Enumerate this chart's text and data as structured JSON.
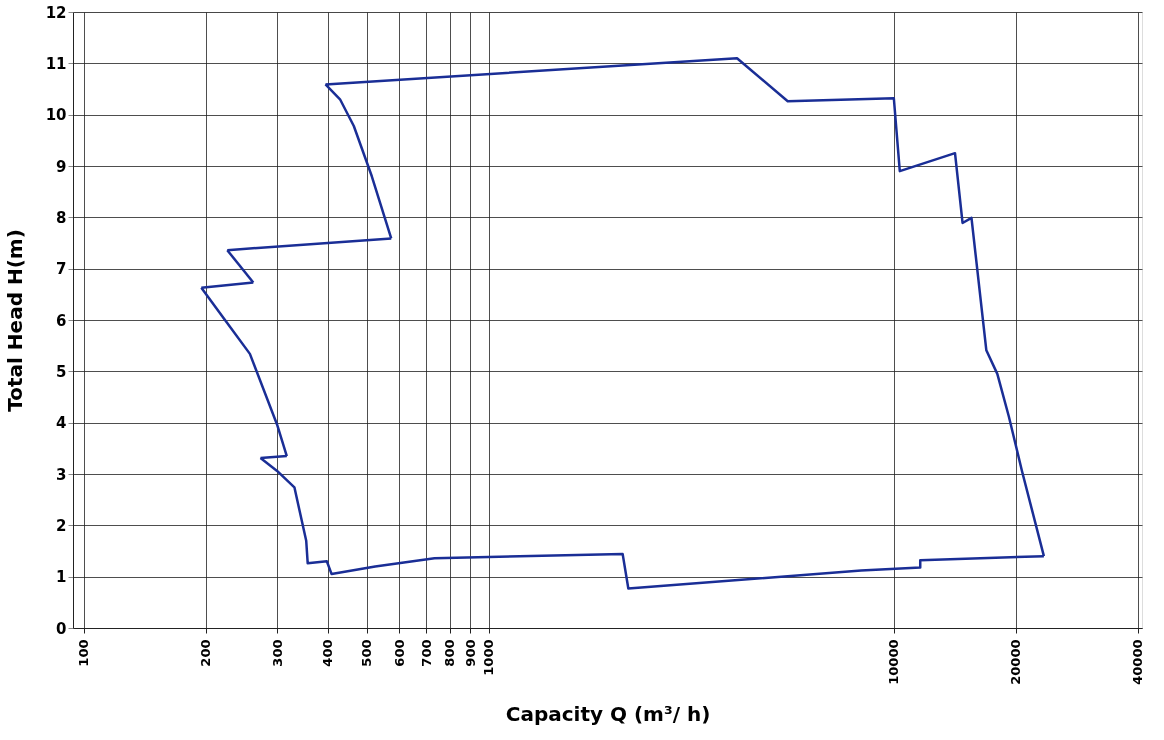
{
  "chart_data": {
    "type": "line",
    "xlabel": "Capacity Q (m³/ h)",
    "ylabel": "Total Head H(m)",
    "log": "x",
    "grid": true,
    "marker": "none",
    "line_style": "solid",
    "xlim": [
      94,
      41000
    ],
    "ylim": [
      0,
      12
    ],
    "xticks": [
      100,
      200,
      300,
      400,
      500,
      600,
      700,
      800,
      900,
      1000,
      10000,
      20000,
      40000
    ],
    "yticks": [
      0,
      1,
      2,
      3,
      4,
      5,
      6,
      7,
      8,
      9,
      10,
      11,
      12
    ],
    "series": [
      {
        "color": "#1a2e96",
        "x": [
          395,
          4100,
          5470,
          10000,
          10345,
          14160,
          14780,
          15550,
          16920,
          18010,
          19230,
          20720,
          23470
        ],
        "values": [
          10.59,
          11.1,
          10.26,
          10.32,
          8.9,
          9.25,
          7.89,
          7.99,
          5.41,
          4.95,
          4.12,
          3.06,
          1.4
        ]
      },
      {
        "color": "#1a2e96",
        "x": [
          23470,
          11620,
          11620,
          8300,
          2210,
          2140,
          734,
          524,
          409,
          398,
          357,
          354,
          331,
          300,
          273
        ],
        "values": [
          1.4,
          1.32,
          1.18,
          1.12,
          0.77,
          1.44,
          1.36,
          1.2,
          1.05,
          1.3,
          1.26,
          1.7,
          2.74,
          3.06,
          3.31
        ]
      },
      {
        "color": "#1a2e96",
        "x": [
          273,
          317
        ],
        "values": [
          3.31,
          3.35
        ]
      },
      {
        "color": "#1a2e96",
        "x": [
          317,
          300,
          257,
          224,
          195
        ],
        "values": [
          3.35,
          3.96,
          5.34,
          5.98,
          6.63
        ]
      },
      {
        "color": "#1a2e96",
        "x": [
          195,
          262
        ],
        "values": [
          6.63,
          6.73
        ]
      },
      {
        "color": "#1a2e96",
        "x": [
          262,
          226
        ],
        "values": [
          6.73,
          7.36
        ]
      },
      {
        "color": "#1a2e96",
        "x": [
          226,
          574
        ],
        "values": [
          7.36,
          7.59
        ]
      },
      {
        "color": "#1a2e96",
        "x": [
          574,
          514,
          464,
          429,
          395
        ],
        "values": [
          7.59,
          8.8,
          9.78,
          10.3,
          10.59
        ]
      }
    ]
  }
}
